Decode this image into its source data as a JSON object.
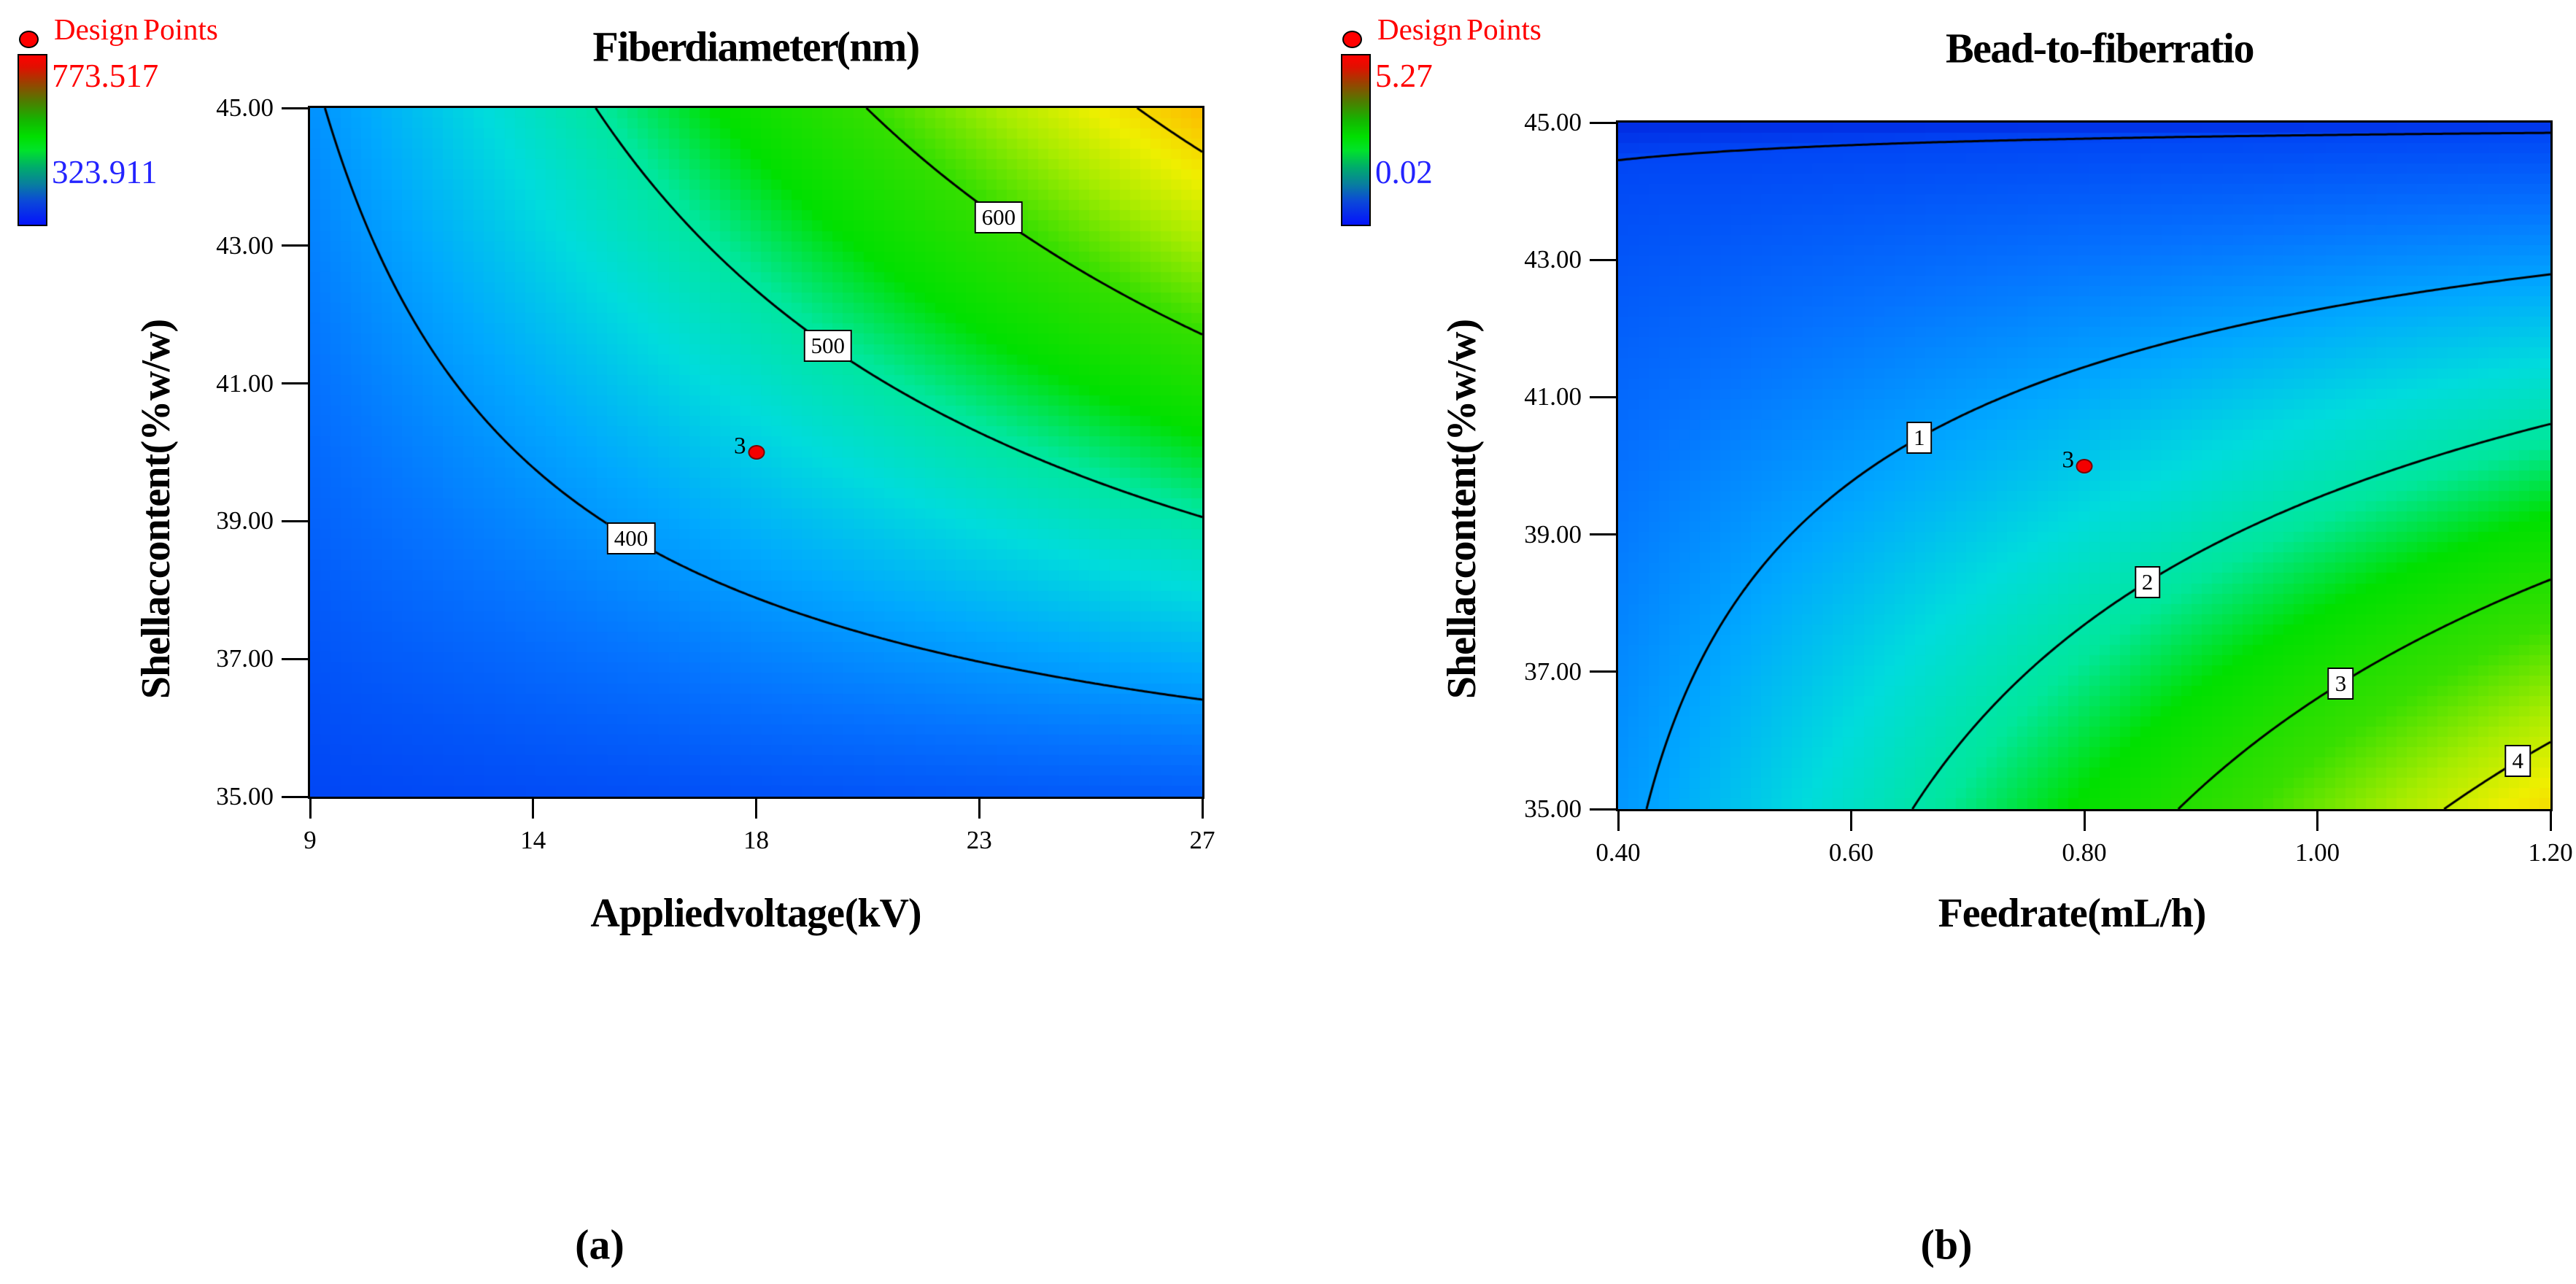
{
  "figure_type": "response-surface graded contour plots",
  "captions": {
    "a": "(a)",
    "b": "(b)"
  },
  "colors": {
    "background": "#ffffff",
    "contour_line": "#000000",
    "design_point_red": "#FF0000",
    "legend_max_text": "#FF0000",
    "legend_min_text": "#2323FF",
    "surface_colormap_stops": [
      [
        -0.015,
        "#0128E0"
      ],
      [
        0.0,
        "#0146F5"
      ],
      [
        0.1,
        "#0573FF"
      ],
      [
        0.2,
        "#00A8FF"
      ],
      [
        0.3,
        "#00DCDC"
      ],
      [
        0.4,
        "#00E79B"
      ],
      [
        0.49,
        "#00E000"
      ],
      [
        0.62,
        "#38DF00"
      ],
      [
        0.72,
        "#A8EC00"
      ],
      [
        0.8,
        "#EFEF00"
      ],
      [
        0.9,
        "#FFB400"
      ],
      [
        1.0,
        "#FF8A00"
      ]
    ],
    "legend_bar_gradient_top_to_bottom": [
      [
        0,
        "#FF0000"
      ],
      [
        0.07,
        "#E01000"
      ],
      [
        0.16,
        "#9C4000"
      ],
      [
        0.27,
        "#4F7B00"
      ],
      [
        0.38,
        "#15B500"
      ],
      [
        0.48,
        "#00DF00"
      ],
      [
        0.56,
        "#00E32A"
      ],
      [
        0.66,
        "#00AC6B"
      ],
      [
        0.76,
        "#087F9E"
      ],
      [
        0.86,
        "#0B49D8"
      ],
      [
        1,
        "#0413FC"
      ]
    ]
  },
  "chart_data": [
    {
      "type": "heatmap",
      "subtype": "graded-contour-response-surface",
      "title": "Fiber diameter (nm)",
      "xlabel": "Applied voltage (kV)",
      "ylabel": "Shellac content (% w/w)",
      "xlim": [
        9,
        27
      ],
      "ylim": [
        35,
        45
      ],
      "x_tick_labels": [
        "9",
        "14",
        "18",
        "23",
        "27"
      ],
      "y_tick_labels": [
        "35.00",
        "37.00",
        "39.00",
        "41.00",
        "43.00",
        "45.00"
      ],
      "legend": {
        "design_points_label": "Design Points",
        "scale_max_label": "773.517",
        "scale_min_label": "323.911"
      },
      "value_range": [
        323.911,
        773.517
      ],
      "contours": [
        {
          "value": 400,
          "label": "400",
          "label_frac_y": 0.625
        },
        {
          "value": 500,
          "label": "500",
          "label_frac_y": 0.345
        },
        {
          "value": 600,
          "label": "600",
          "label_frac_y": 0.159
        },
        {
          "value": 700,
          "label": null,
          "label_frac_y": null
        }
      ],
      "design_points": [
        {
          "x": 18,
          "y": 40,
          "count_label": "3"
        }
      ],
      "surface_model_normalized": {
        "note": "v(u,s)=k0+ku*u+ks*s+kus*u*s+kss*s^2 ; u=(x-9)/18 ; s=(y-35)/10 ; value=323.911+v*449.606 ; estimated from contour positions",
        "k0": 0,
        "ku": 0.051,
        "ks": 0.157,
        "kus": 0.682,
        "kss": 0
      }
    },
    {
      "type": "heatmap",
      "subtype": "graded-contour-response-surface",
      "title": "Bead-to-fiber ratio",
      "xlabel": "Feed rate (mL/h)",
      "ylabel": "Shellac content (% w/w)",
      "xlim": [
        0.4,
        1.2
      ],
      "ylim": [
        35,
        45
      ],
      "x_tick_labels": [
        "0.40",
        "0.60",
        "0.80",
        "1.00",
        "1.20"
      ],
      "y_tick_labels": [
        "35.00",
        "37.00",
        "39.00",
        "41.00",
        "43.00",
        "45.00"
      ],
      "legend": {
        "design_points_label": "Design Points",
        "scale_max_label": "5.27",
        "scale_min_label": "0.02"
      },
      "value_range": [
        0.02,
        5.27
      ],
      "contours": [
        {
          "value": 0.02,
          "label": null,
          "label_frac_y": null
        },
        {
          "value": 1,
          "label": "1",
          "label_frac_y": 0.459
        },
        {
          "value": 2,
          "label": "2",
          "label_frac_y": 0.669
        },
        {
          "value": 3,
          "label": "3",
          "label_frac_y": 0.817
        },
        {
          "value": 4,
          "label": "4",
          "label_frac_y": 0.93
        }
      ],
      "design_points": [
        {
          "x": 0.8,
          "y": 40,
          "count_label": "3"
        }
      ],
      "surface_model_normalized": {
        "note": "v(u,s)=k0+ku*u+ks*s+kus*u*s+kss*s^2 ; u=(x-0.4)/0.8 ; s=(y-35)/10 ; value=0.02+v*5.25 ; estimated from contour positions",
        "k0": 0.1663,
        "ku": 0.668,
        "ks": -0.1045,
        "kus": -0.668,
        "kss": -0.0756
      }
    }
  ]
}
